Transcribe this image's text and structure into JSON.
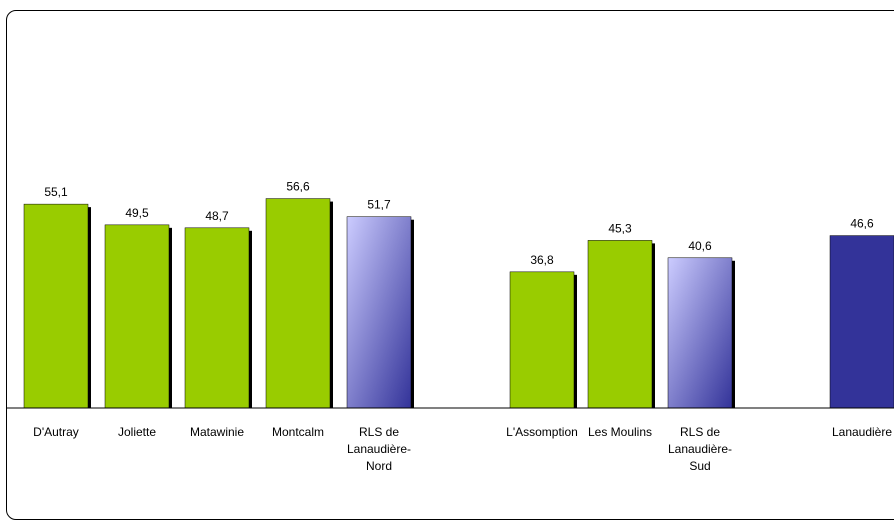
{
  "chart_data": {
    "type": "bar",
    "categories": [
      "D'Autray",
      "Joliette",
      "Matawinie",
      "Montcalm",
      "RLS de Lanaudière-Nord",
      "L'Assomption",
      "Les Moulins",
      "RLS de Lanaudière-Sud",
      "Lanaudière"
    ],
    "category_lines": [
      [
        "D'Autray"
      ],
      [
        "Joliette"
      ],
      [
        "Matawinie"
      ],
      [
        "Montcalm"
      ],
      [
        "RLS de",
        "Lanaudière-",
        "Nord"
      ],
      [
        "L'Assomption"
      ],
      [
        "Les Moulins"
      ],
      [
        "RLS de",
        "Lanaudière-",
        "Sud"
      ],
      [
        "Lanaudière"
      ]
    ],
    "values": [
      55.1,
      49.5,
      48.7,
      56.6,
      51.7,
      36.8,
      45.3,
      40.6,
      46.6
    ],
    "value_labels": [
      "55,1",
      "49,5",
      "48,7",
      "56,6",
      "51,7",
      "36,8",
      "45,3",
      "40,6",
      "46,6"
    ],
    "bar_styles": [
      "green",
      "green",
      "green",
      "green",
      "gradient",
      "green",
      "green",
      "gradient",
      "navy"
    ],
    "ylim": [
      0,
      100
    ],
    "grid": false,
    "title": "",
    "xlabel": "",
    "ylabel": "",
    "colors": {
      "green": "#99cc00",
      "gradient_top": "#ccccff",
      "gradient_bottom": "#333399",
      "navy": "#333399",
      "outline": "#000000"
    }
  }
}
